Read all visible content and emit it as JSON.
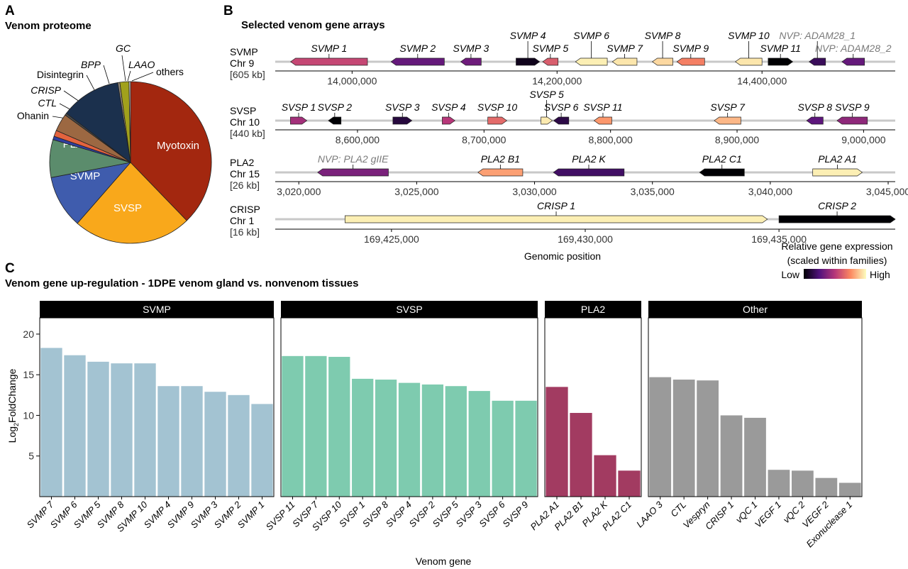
{
  "panel_labels": [
    "A",
    "B",
    "C"
  ],
  "chart_data": [
    {
      "type": "pie",
      "title": "Venom proteome",
      "slices": [
        {
          "label": "Myotoxin",
          "value": 37.5,
          "color": "#a3270f",
          "italic": false
        },
        {
          "label": "SVSP",
          "value": 23.5,
          "color": "#f9a81b",
          "italic": false
        },
        {
          "label": "SVMP",
          "value": 10.5,
          "color": "#3f5cad",
          "italic": false
        },
        {
          "label": "PLA2",
          "value": 7.5,
          "color": "#5b8c6c",
          "italic": false
        },
        {
          "label": "Ohanin",
          "value": 0.7,
          "color": "#2f3fa0",
          "italic": false
        },
        {
          "label": "CTL",
          "value": 1.2,
          "color": "#e3633e",
          "italic": true
        },
        {
          "label": "CRISP",
          "value": 3.5,
          "color": "#9c6842",
          "italic": true
        },
        {
          "label": "Disintegrin",
          "value": 0.4,
          "color": "#4a4a4a",
          "italic": false
        },
        {
          "label": "BPP",
          "value": 12.0,
          "color": "#1b304d",
          "italic": true
        },
        {
          "label": "GC",
          "value": 0.4,
          "color": "#9b8f7c",
          "italic": true
        },
        {
          "label": "LAAO",
          "value": 1.8,
          "color": "#a1a11c",
          "italic": true
        },
        {
          "label": "others",
          "value": 0.3,
          "color": "#d9d9d9",
          "italic": false
        }
      ]
    },
    {
      "type": "gene-array",
      "title": "Selected venom gene arrays",
      "xlabel": "Genomic position",
      "legend": {
        "title_line1": "Relative gene expression",
        "title_line2": "(scaled within families)",
        "low": "Low",
        "high": "High"
      },
      "tracks": [
        {
          "name": "SVMP",
          "chr": "Chr  9",
          "size": "[605 kb]",
          "xlim": [
            13925000,
            14530000
          ],
          "ticks": [
            14000000,
            14200000,
            14400000
          ],
          "tick_labels": [
            "14,000,000",
            "14,200,000",
            "14,400,000"
          ],
          "genes": [
            {
              "label": "SVMP 1",
              "start": 13940000,
              "end": 14015000,
              "strand": "-",
              "expr": 0.55
            },
            {
              "label": "SVMP 2",
              "start": 14038000,
              "end": 14090000,
              "strand": "-",
              "expr": 0.3
            },
            {
              "label": "SVMP 3",
              "start": 14106000,
              "end": 14126000,
              "strand": "-",
              "expr": 0.32
            },
            {
              "label": "SVMP 4",
              "start": 14160000,
              "end": 14183000,
              "strand": "+",
              "expr": 0.05
            },
            {
              "label": "SVMP 5",
              "start": 14186000,
              "end": 14201000,
              "strand": "-",
              "expr": 0.62
            },
            {
              "label": "SVMP 6",
              "start": 14218000,
              "end": 14249000,
              "strand": "-",
              "expr": 0.97
            },
            {
              "label": "SVMP 7",
              "start": 14254000,
              "end": 14278000,
              "strand": "-",
              "expr": 0.95
            },
            {
              "label": "SVMP 8",
              "start": 14293000,
              "end": 14313000,
              "strand": "-",
              "expr": 0.92
            },
            {
              "label": "SVMP 9",
              "start": 14317000,
              "end": 14344000,
              "strand": "-",
              "expr": 0.72
            },
            {
              "label": "SVMP 10",
              "start": 14374000,
              "end": 14400000,
              "strand": "-",
              "expr": 0.95
            },
            {
              "label": "SVMP 11",
              "start": 14406000,
              "end": 14430000,
              "strand": "+",
              "expr": 0.0
            },
            {
              "label": "NVP: ADAM28_1",
              "start": 14446000,
              "end": 14462000,
              "strand": "-",
              "expr": 0.18,
              "nvp": true
            },
            {
              "label": "NVP: ADAM28_2",
              "start": 14478000,
              "end": 14500000,
              "strand": "-",
              "expr": 0.3,
              "nvp": true
            }
          ]
        },
        {
          "name": "SVSP",
          "chr": "Chr  10",
          "size": "[440 kb]",
          "xlim": [
            8535000,
            9025000
          ],
          "ticks": [
            8600000,
            8700000,
            8800000,
            8900000,
            9000000
          ],
          "tick_labels": [
            "8,600,000",
            "8,700,000",
            "8,800,000",
            "8,900,000",
            "9,000,000"
          ],
          "genes": [
            {
              "label": "SVSP 1",
              "start": 8547000,
              "end": 8560000,
              "strand": "+",
              "expr": 0.45
            },
            {
              "label": "SVSP 2",
              "start": 8577000,
              "end": 8587000,
              "strand": "-",
              "expr": 0.0
            },
            {
              "label": "SVSP 3",
              "start": 8628000,
              "end": 8643000,
              "strand": "+",
              "expr": 0.12
            },
            {
              "label": "SVSP 4",
              "start": 8667000,
              "end": 8677000,
              "strand": "+",
              "expr": 0.5
            },
            {
              "label": "SVSP 10",
              "start": 8703000,
              "end": 8718000,
              "strand": "+",
              "expr": 0.66
            },
            {
              "label": "SVSP 5",
              "start": 8745000,
              "end": 8754000,
              "strand": "+",
              "expr": 0.96
            },
            {
              "label": "SVSP 6",
              "start": 8755000,
              "end": 8767000,
              "strand": "-",
              "expr": 0.14
            },
            {
              "label": "SVSP 11",
              "start": 8787000,
              "end": 8801000,
              "strand": "-",
              "expr": 0.78
            },
            {
              "label": "SVSP 7",
              "start": 8882000,
              "end": 8903000,
              "strand": "-",
              "expr": 0.85
            },
            {
              "label": "SVSP 8",
              "start": 8955000,
              "end": 8968000,
              "strand": "-",
              "expr": 0.28
            },
            {
              "label": "SVSP 9",
              "start": 8979000,
              "end": 9003000,
              "strand": "-",
              "expr": 0.4
            }
          ]
        },
        {
          "name": "PLA2",
          "chr": "Chr  15",
          "size": "[26 kb]",
          "xlim": [
            3019000,
            3045300
          ],
          "ticks": [
            3020000,
            3025000,
            3030000,
            3035000,
            3040000,
            3045000
          ],
          "tick_labels": [
            "3,020,000",
            "3,025,000",
            "3,030,000",
            "3,035,000",
            "3,040,000",
            "3,045,000"
          ],
          "genes": [
            {
              "label": "NVP: PLA2 gIIE",
              "start": 3020800,
              "end": 3023800,
              "strand": "-",
              "expr": 0.35,
              "nvp": true
            },
            {
              "label": "PLA2 B1",
              "start": 3027600,
              "end": 3029500,
              "strand": "-",
              "expr": 0.8
            },
            {
              "label": "PLA2 K",
              "start": 3030800,
              "end": 3033800,
              "strand": "-",
              "expr": 0.2
            },
            {
              "label": "PLA2 C1",
              "start": 3037000,
              "end": 3038900,
              "strand": "-",
              "expr": 0.0
            },
            {
              "label": "PLA2 A1",
              "start": 3041800,
              "end": 3043900,
              "strand": "+",
              "expr": 0.97
            }
          ]
        },
        {
          "name": "CRISP",
          "chr": "Chr  1",
          "size": "[16 kb]",
          "xlim": [
            169422000,
            169438000
          ],
          "ticks": [
            169425000,
            169430000,
            169435000
          ],
          "tick_labels": [
            "169,425,000",
            "169,430,000",
            "169,435,000"
          ],
          "genes": [
            {
              "label": "CRISP 1",
              "start": 169423800,
              "end": 169434700,
              "strand": "+",
              "expr": 0.97
            },
            {
              "label": "CRISP 2",
              "start": 169435000,
              "end": 169438000,
              "strand": "+",
              "expr": 0.0
            }
          ]
        }
      ]
    },
    {
      "type": "bar",
      "title": "Venom gene up-regulation - 1DPE venom gland vs. nonvenom tissues",
      "xlabel": "Venom gene",
      "ylabel": "Log2FoldChange",
      "ylim": [
        0,
        22
      ],
      "yticks": [
        5,
        10,
        15,
        20
      ],
      "facets": [
        {
          "name": "SVMP",
          "color": "#a3c3d2",
          "categories": [
            "SVMP 7",
            "SVMP 6",
            "SVMP 5",
            "SVMP 8",
            "SVMP 10",
            "SVMP 4",
            "SVMP 9",
            "SVMP 3",
            "SVMP 2",
            "SVMP 1"
          ],
          "values": [
            18.3,
            17.4,
            16.6,
            16.4,
            16.4,
            13.6,
            13.6,
            12.9,
            12.5,
            11.4
          ]
        },
        {
          "name": "SVSP",
          "color": "#7ecbaf",
          "categories": [
            "SVSP 11",
            "SVSP 7",
            "SVSP 10",
            "SVSP 1",
            "SVSP 8",
            "SVSP 4",
            "SVSP 2",
            "SVSP 5",
            "SVSP 3",
            "SVSP 6",
            "SVSP 9"
          ],
          "values": [
            17.3,
            17.3,
            17.2,
            14.5,
            14.4,
            14.0,
            13.8,
            13.6,
            13.0,
            11.8,
            11.8
          ]
        },
        {
          "name": "PLA2",
          "color": "#a23b61",
          "categories": [
            "PLA2 A1",
            "PLA2 B1",
            "PLA2 K",
            "PLA2 C1"
          ],
          "values": [
            13.5,
            10.3,
            5.1,
            3.2
          ]
        },
        {
          "name": "Other",
          "color": "#9a9a9a",
          "categories": [
            "LAAO 3",
            "CTL",
            "Vespryn",
            "CRISP 1",
            "vQC 1",
            "VEGF 1",
            "vQC 2",
            "VEGF 2",
            "Exonuclease 1"
          ],
          "values": [
            14.7,
            14.4,
            14.3,
            10.0,
            9.7,
            3.3,
            3.2,
            2.3,
            1.7
          ]
        }
      ]
    }
  ]
}
